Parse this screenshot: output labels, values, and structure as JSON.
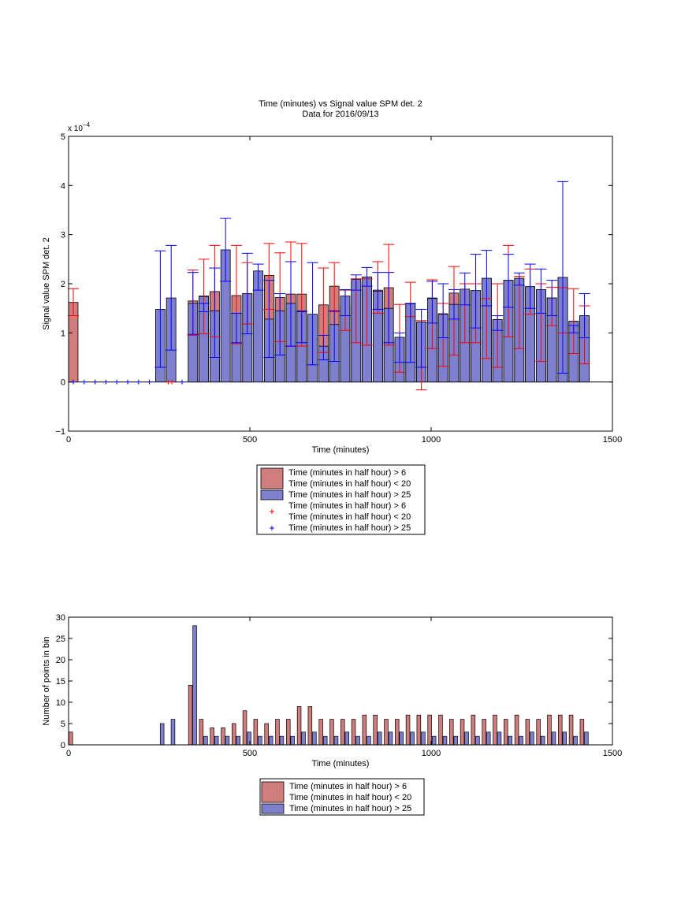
{
  "chart_data": [
    {
      "type": "bar",
      "title": "Time (minutes) vs Signal value SPM det. 2",
      "subtitle": "Data for 2016/09/13",
      "xlabel": "Time (minutes)",
      "ylabel": "Signal value SPM det. 2",
      "exponent_label": "x 10",
      "exponent_power": "−4",
      "xlim": [
        0,
        1500
      ],
      "ylim": [
        -1,
        5
      ],
      "y_scale": "1e-4",
      "xticks": [
        0,
        500,
        1000,
        1500
      ],
      "yticks": [
        -1,
        0,
        1,
        2,
        3,
        4,
        5
      ],
      "grid": false,
      "legend_position": "below",
      "legend": [
        {
          "label": "Time (minutes in half hour) > 6\nTime (minutes in half hour) < 20",
          "color": "#d07d7d",
          "marker": "patch"
        },
        {
          "label": "Time (minutes in half hour) > 25",
          "color": "#7f7fd0",
          "marker": "patch"
        },
        {
          "label": "Time (minutes in half hour) > 6\nTime (minutes in half hour) < 20",
          "color": "#ff0000",
          "marker": "+"
        },
        {
          "label": "Time (minutes in half hour) > 25",
          "color": "#0000ff",
          "marker": "+"
        }
      ],
      "series": [
        {
          "color": "#d07d7d",
          "err_color": "#ff0000",
          "bar_width": 26,
          "points": [
            {
              "x": 13,
              "y": 1.62,
              "lo": 1.35,
              "hi": 1.9
            },
            {
              "x": 343,
              "y": 1.65,
              "lo": 0.95,
              "hi": 2.28
            },
            {
              "x": 373,
              "y": 1.75,
              "lo": 0.98,
              "hi": 2.5
            },
            {
              "x": 403,
              "y": 1.84,
              "lo": 0.92,
              "hi": 2.78
            },
            {
              "x": 463,
              "y": 1.76,
              "lo": 0.78,
              "hi": 2.78
            },
            {
              "x": 493,
              "y": 1.8,
              "lo": 1.18,
              "hi": 2.43
            },
            {
              "x": 553,
              "y": 2.17,
              "lo": 1.48,
              "hi": 2.82
            },
            {
              "x": 583,
              "y": 1.72,
              "lo": 0.82,
              "hi": 2.63
            },
            {
              "x": 613,
              "y": 1.79,
              "lo": 0.73,
              "hi": 2.85
            },
            {
              "x": 643,
              "y": 1.79,
              "lo": 0.73,
              "hi": 2.82
            },
            {
              "x": 703,
              "y": 1.57,
              "lo": 0.6,
              "hi": 2.32
            },
            {
              "x": 733,
              "y": 1.95,
              "lo": 1.43,
              "hi": 2.43
            },
            {
              "x": 763,
              "y": 1.55,
              "lo": 1.05,
              "hi": 1.87
            },
            {
              "x": 793,
              "y": 2.03,
              "lo": 0.8,
              "hi": 2.1
            },
            {
              "x": 823,
              "y": 1.9,
              "lo": 0.75,
              "hi": 2.1
            },
            {
              "x": 853,
              "y": 1.87,
              "lo": 1.4,
              "hi": 2.45
            },
            {
              "x": 883,
              "y": 1.92,
              "lo": 0.75,
              "hi": 2.8
            },
            {
              "x": 913,
              "y": 0.91,
              "lo": 0.2,
              "hi": 1.58
            },
            {
              "x": 943,
              "y": 1.6,
              "lo": 1.33,
              "hi": 2.03
            },
            {
              "x": 973,
              "y": 1.22,
              "lo": -0.16,
              "hi": 1.25
            },
            {
              "x": 1003,
              "y": 1.71,
              "lo": 0.68,
              "hi": 2.08
            },
            {
              "x": 1033,
              "y": 1.39,
              "lo": 0.32,
              "hi": 1.6
            },
            {
              "x": 1063,
              "y": 1.81,
              "lo": 0.55,
              "hi": 2.35
            },
            {
              "x": 1093,
              "y": 1.89,
              "lo": 0.8,
              "hi": 2.0
            },
            {
              "x": 1123,
              "y": 1.86,
              "lo": 0.8,
              "hi": 2.0
            },
            {
              "x": 1153,
              "y": 2.11,
              "lo": 0.48,
              "hi": 1.7
            },
            {
              "x": 1183,
              "y": 1.27,
              "lo": 0.3,
              "hi": 2.0
            },
            {
              "x": 1213,
              "y": 2.07,
              "lo": 0.92,
              "hi": 2.78
            },
            {
              "x": 1243,
              "y": 2.11,
              "lo": 0.68,
              "hi": 2.15
            },
            {
              "x": 1273,
              "y": 1.94,
              "lo": 1.38,
              "hi": 2.3
            },
            {
              "x": 1303,
              "y": 1.88,
              "lo": 0.42,
              "hi": 2.0
            },
            {
              "x": 1333,
              "y": 1.71,
              "lo": 1.15,
              "hi": 1.93
            },
            {
              "x": 1363,
              "y": 2.13,
              "lo": 1.0,
              "hi": 1.92
            },
            {
              "x": 1393,
              "y": 1.24,
              "lo": 0.58,
              "hi": 1.9
            },
            {
              "x": 1423,
              "y": 1.35,
              "lo": 0.37,
              "hi": 1.55
            }
          ],
          "zero_markers": [
            275,
            285
          ]
        },
        {
          "color": "#7f7fd0",
          "err_color": "#0000ff",
          "bar_width": 26,
          "points": [
            {
              "x": 253,
              "y": 1.48,
              "lo": 0.3,
              "hi": 2.67
            },
            {
              "x": 283,
              "y": 1.71,
              "lo": 0.65,
              "hi": 2.78
            },
            {
              "x": 343,
              "y": 1.6,
              "lo": 0.97,
              "hi": 2.23
            },
            {
              "x": 373,
              "y": 1.74,
              "lo": 1.43,
              "hi": 1.6
            },
            {
              "x": 403,
              "y": 1.45,
              "lo": 0.5,
              "hi": 2.32
            },
            {
              "x": 433,
              "y": 2.69,
              "lo": 2.05,
              "hi": 3.33
            },
            {
              "x": 463,
              "y": 1.4,
              "lo": 0.8,
              "hi": 1.4
            },
            {
              "x": 493,
              "y": 1.8,
              "lo": 0.98,
              "hi": 2.62
            },
            {
              "x": 523,
              "y": 2.26,
              "lo": 1.87,
              "hi": 2.4
            },
            {
              "x": 553,
              "y": 1.28,
              "lo": 0.5,
              "hi": 2.07
            },
            {
              "x": 583,
              "y": 1.45,
              "lo": 0.55,
              "hi": 1.8
            },
            {
              "x": 613,
              "y": 1.6,
              "lo": 0.73,
              "hi": 2.45
            },
            {
              "x": 643,
              "y": 1.45,
              "lo": 0.8,
              "hi": 1.43
            },
            {
              "x": 673,
              "y": 1.38,
              "lo": 0.35,
              "hi": 2.43
            },
            {
              "x": 703,
              "y": 0.73,
              "lo": 0.45,
              "hi": 0.95
            },
            {
              "x": 733,
              "y": 1.17,
              "lo": 0.42,
              "hi": 1.45
            },
            {
              "x": 763,
              "y": 1.75,
              "lo": 1.35,
              "hi": 1.88
            },
            {
              "x": 793,
              "y": 2.09,
              "lo": 1.87,
              "hi": 2.18
            },
            {
              "x": 823,
              "y": 2.14,
              "lo": 1.95,
              "hi": 2.33
            },
            {
              "x": 853,
              "y": 1.85,
              "lo": 1.48,
              "hi": 2.23
            },
            {
              "x": 883,
              "y": 1.5,
              "lo": 0.8,
              "hi": 2.23
            },
            {
              "x": 913,
              "y": 0.91,
              "lo": 0.4,
              "hi": 1.0
            },
            {
              "x": 943,
              "y": 1.59,
              "lo": 0.4,
              "hi": 1.6
            },
            {
              "x": 973,
              "y": 1.22,
              "lo": 0.3,
              "hi": 1.48
            },
            {
              "x": 1003,
              "y": 1.7,
              "lo": 1.2,
              "hi": 2.05
            },
            {
              "x": 1033,
              "y": 1.38,
              "lo": 0.9,
              "hi": 2.0
            },
            {
              "x": 1063,
              "y": 1.58,
              "lo": 1.28,
              "hi": 1.88
            },
            {
              "x": 1093,
              "y": 1.89,
              "lo": 1.57,
              "hi": 2.22
            },
            {
              "x": 1123,
              "y": 1.86,
              "lo": 1.1,
              "hi": 2.6
            },
            {
              "x": 1153,
              "y": 2.11,
              "lo": 1.55,
              "hi": 2.68
            },
            {
              "x": 1183,
              "y": 1.27,
              "lo": 1.05,
              "hi": 1.35
            },
            {
              "x": 1213,
              "y": 2.07,
              "lo": 1.52,
              "hi": 2.6
            },
            {
              "x": 1243,
              "y": 2.11,
              "lo": 1.97,
              "hi": 2.22
            },
            {
              "x": 1273,
              "y": 1.94,
              "lo": 1.5,
              "hi": 2.4
            },
            {
              "x": 1303,
              "y": 1.88,
              "lo": 1.4,
              "hi": 2.3
            },
            {
              "x": 1333,
              "y": 1.71,
              "lo": 1.35,
              "hi": 2.07
            },
            {
              "x": 1363,
              "y": 2.13,
              "lo": 0.18,
              "hi": 4.08
            },
            {
              "x": 1393,
              "y": 1.24,
              "lo": 1.0,
              "hi": 1.15
            },
            {
              "x": 1423,
              "y": 1.35,
              "lo": 0.9,
              "hi": 1.8
            }
          ],
          "zero_markers": [
            13,
            43,
            73,
            103,
            133,
            163,
            193,
            223,
            313
          ]
        }
      ]
    },
    {
      "type": "bar",
      "xlabel": "Time (minutes)",
      "ylabel": "Number of points in bin",
      "xlim": [
        0,
        1500
      ],
      "ylim": [
        0,
        30
      ],
      "xticks": [
        0,
        500,
        1000,
        1500
      ],
      "yticks": [
        0,
        5,
        10,
        15,
        20,
        25,
        30
      ],
      "grid": false,
      "legend_position": "below",
      "legend": [
        {
          "label": "Time (minutes in half hour) > 6\nTime (minutes in half hour) < 20",
          "color": "#d07d7d",
          "marker": "patch"
        },
        {
          "label": "Time (minutes in half hour) > 25",
          "color": "#7f7fd0",
          "marker": "patch"
        }
      ],
      "series": [
        {
          "color": "#d07d7d",
          "points": [
            {
              "x": 6,
              "y": 3
            },
            {
              "x": 336,
              "y": 14
            },
            {
              "x": 366,
              "y": 6
            },
            {
              "x": 396,
              "y": 4
            },
            {
              "x": 426,
              "y": 4
            },
            {
              "x": 456,
              "y": 5
            },
            {
              "x": 486,
              "y": 8
            },
            {
              "x": 516,
              "y": 6
            },
            {
              "x": 546,
              "y": 5
            },
            {
              "x": 576,
              "y": 6
            },
            {
              "x": 606,
              "y": 6
            },
            {
              "x": 636,
              "y": 9
            },
            {
              "x": 666,
              "y": 9
            },
            {
              "x": 696,
              "y": 6
            },
            {
              "x": 726,
              "y": 6
            },
            {
              "x": 756,
              "y": 6
            },
            {
              "x": 786,
              "y": 6
            },
            {
              "x": 816,
              "y": 7
            },
            {
              "x": 846,
              "y": 7
            },
            {
              "x": 876,
              "y": 6
            },
            {
              "x": 906,
              "y": 6
            },
            {
              "x": 936,
              "y": 7
            },
            {
              "x": 966,
              "y": 7
            },
            {
              "x": 996,
              "y": 7
            },
            {
              "x": 1026,
              "y": 7
            },
            {
              "x": 1056,
              "y": 6
            },
            {
              "x": 1086,
              "y": 6
            },
            {
              "x": 1116,
              "y": 7
            },
            {
              "x": 1146,
              "y": 6
            },
            {
              "x": 1176,
              "y": 7
            },
            {
              "x": 1206,
              "y": 6
            },
            {
              "x": 1236,
              "y": 7
            },
            {
              "x": 1266,
              "y": 6
            },
            {
              "x": 1296,
              "y": 6
            },
            {
              "x": 1326,
              "y": 7
            },
            {
              "x": 1356,
              "y": 7
            },
            {
              "x": 1386,
              "y": 7
            },
            {
              "x": 1416,
              "y": 6
            }
          ]
        },
        {
          "color": "#7f7fd0",
          "points": [
            {
              "x": 258,
              "y": 5
            },
            {
              "x": 288,
              "y": 6
            },
            {
              "x": 348,
              "y": 28
            },
            {
              "x": 378,
              "y": 2
            },
            {
              "x": 408,
              "y": 2
            },
            {
              "x": 438,
              "y": 2
            },
            {
              "x": 468,
              "y": 2
            },
            {
              "x": 498,
              "y": 3
            },
            {
              "x": 528,
              "y": 2
            },
            {
              "x": 558,
              "y": 2
            },
            {
              "x": 588,
              "y": 2
            },
            {
              "x": 618,
              "y": 2
            },
            {
              "x": 648,
              "y": 3
            },
            {
              "x": 678,
              "y": 3
            },
            {
              "x": 708,
              "y": 2
            },
            {
              "x": 738,
              "y": 2
            },
            {
              "x": 768,
              "y": 3
            },
            {
              "x": 798,
              "y": 2
            },
            {
              "x": 828,
              "y": 2
            },
            {
              "x": 858,
              "y": 3
            },
            {
              "x": 888,
              "y": 3
            },
            {
              "x": 918,
              "y": 3
            },
            {
              "x": 948,
              "y": 3
            },
            {
              "x": 978,
              "y": 3
            },
            {
              "x": 1008,
              "y": 2
            },
            {
              "x": 1038,
              "y": 2
            },
            {
              "x": 1068,
              "y": 2
            },
            {
              "x": 1098,
              "y": 3
            },
            {
              "x": 1128,
              "y": 2
            },
            {
              "x": 1158,
              "y": 3
            },
            {
              "x": 1188,
              "y": 3
            },
            {
              "x": 1218,
              "y": 2
            },
            {
              "x": 1248,
              "y": 2
            },
            {
              "x": 1278,
              "y": 3
            },
            {
              "x": 1308,
              "y": 2
            },
            {
              "x": 1338,
              "y": 3
            },
            {
              "x": 1368,
              "y": 3
            },
            {
              "x": 1398,
              "y": 2
            },
            {
              "x": 1428,
              "y": 3
            }
          ]
        }
      ]
    }
  ]
}
